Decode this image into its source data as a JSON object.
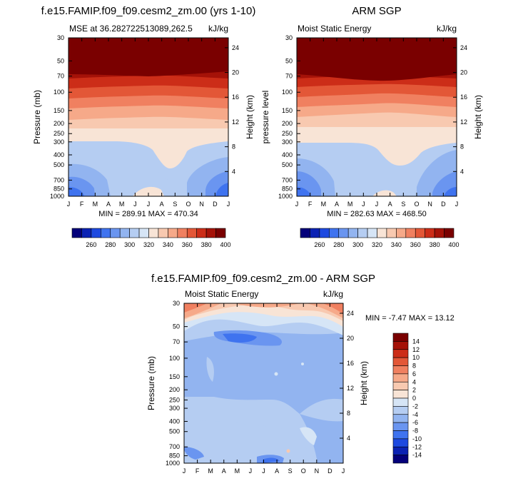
{
  "colors": {
    "levels": [
      "#04007a",
      "#0b22b3",
      "#1d49e0",
      "#3f73ef",
      "#6a95f0",
      "#92b4f0",
      "#b5cdf2",
      "#d6e5f6",
      "#f8e4d6",
      "#f8c9b0",
      "#f6a989",
      "#f08060",
      "#e35737",
      "#cc2d18",
      "#a51208",
      "#7a0000"
    ]
  },
  "chart_data": [
    {
      "type": "heatmap",
      "title": "f.e15.FAMIP.f09_f09.cesm2_zm.00 (yrs 1-10)",
      "subtitle_left": "MSE at 36.282722513089,262.5",
      "subtitle_right": "kJ/kg",
      "ylabel": "Pressure (mb)",
      "ylabel_right": "Height (km)",
      "x": [
        "J",
        "F",
        "M",
        "A",
        "M",
        "J",
        "J",
        "A",
        "S",
        "O",
        "N",
        "D",
        "J"
      ],
      "y_ticks": [
        "30",
        "50",
        "70",
        "100",
        "150",
        "200",
        "250",
        "300",
        "400",
        "500",
        "700",
        "850",
        "1000"
      ],
      "y_ticks_right": [
        "24",
        "20",
        "16",
        "12",
        "8",
        "4"
      ],
      "stats": "MIN = 289.91 MAX = 470.34",
      "colorbar": {
        "labels": [
          "260",
          "280",
          "300",
          "320",
          "340",
          "360",
          "380",
          "400"
        ]
      }
    },
    {
      "type": "heatmap",
      "title": "ARM SGP",
      "subtitle_left": "Moist Static Energy",
      "subtitle_right": "kJ/kg",
      "ylabel": "pressure level",
      "ylabel_right": "Height (km)",
      "x": [
        "J",
        "F",
        "M",
        "A",
        "M",
        "J",
        "J",
        "A",
        "S",
        "O",
        "N",
        "D",
        "J"
      ],
      "y_ticks": [
        "30",
        "50",
        "70",
        "100",
        "150",
        "200",
        "250",
        "300",
        "400",
        "500",
        "700",
        "850",
        "1000"
      ],
      "y_ticks_right": [
        "24",
        "20",
        "16",
        "12",
        "8",
        "4"
      ],
      "stats": "MIN = 282.63 MAX = 468.50",
      "colorbar": {
        "labels": [
          "260",
          "280",
          "300",
          "320",
          "340",
          "360",
          "380",
          "400"
        ]
      }
    },
    {
      "type": "heatmap",
      "title": "f.e15.FAMIP.f09_f09.cesm2_zm.00 - ARM SGP",
      "subtitle_left": "Moist Static Energy",
      "subtitle_right": "kJ/kg",
      "ylabel": "Pressure (mb)",
      "ylabel_right": "Height (km)",
      "x": [
        "J",
        "F",
        "M",
        "A",
        "M",
        "J",
        "J",
        "A",
        "S",
        "O",
        "N",
        "D",
        "J"
      ],
      "y_ticks": [
        "30",
        "50",
        "70",
        "100",
        "150",
        "200",
        "250",
        "300",
        "400",
        "500",
        "700",
        "850",
        "1000"
      ],
      "y_ticks_right": [
        "24",
        "20",
        "16",
        "12",
        "8",
        "4"
      ],
      "stats": "MIN = -7.47 MAX = 13.12",
      "colorbar": {
        "labels": [
          "14",
          "12",
          "10",
          "8",
          "6",
          "4",
          "2",
          "0",
          "-2",
          "-4",
          "-6",
          "-8",
          "-10",
          "-12",
          "-14"
        ]
      }
    }
  ]
}
